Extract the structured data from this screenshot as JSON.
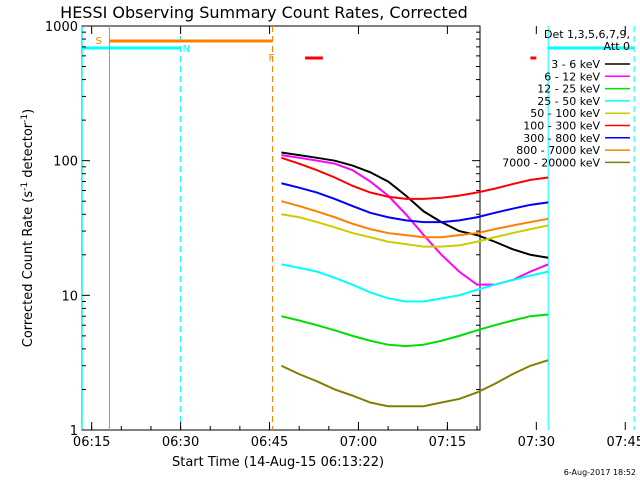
{
  "chart_data": {
    "type": "line",
    "title": "HESSI Observing Summary Count Rates, Corrected",
    "xlabel": "Start Time (14-Aug-15 06:13:22)",
    "ylabel_main": "Corrected Count Rate (s",
    "ylabel_sup1": "-1",
    "ylabel_mid": " detector",
    "ylabel_sup2": "-1",
    "ylabel_end": ")",
    "y_scale": "log",
    "ylim": [
      1,
      1000
    ],
    "xlim_min": [
      13.4,
      80.0
    ],
    "x_ticks": [
      {
        "v": 15,
        "label": "06:15"
      },
      {
        "v": 30,
        "label": "06:30"
      },
      {
        "v": 45,
        "label": "06:45"
      },
      {
        "v": 60,
        "label": "07:00"
      },
      {
        "v": 75,
        "label": "07:15"
      },
      {
        "v": 90,
        "label": "07:30"
      },
      {
        "v": 105,
        "label": "07:45"
      }
    ],
    "y_ticks": [
      {
        "v": 1,
        "label": "1"
      },
      {
        "v": 10,
        "label": "10"
      },
      {
        "v": 100,
        "label": "100"
      },
      {
        "v": 1000,
        "label": "1000"
      }
    ],
    "legend_placement": "right",
    "legend_header": [
      "Det 1,3,5,6,7,9,",
      "Att 0"
    ],
    "series": [
      {
        "name": "3 - 6 keV",
        "color": "#000000",
        "x": [
          47,
          50,
          53,
          56,
          59,
          62,
          65,
          68,
          71,
          74,
          77,
          80,
          83,
          86,
          89,
          92
        ],
        "y": [
          115,
          110,
          105,
          100,
          92,
          82,
          70,
          55,
          42,
          35,
          30,
          28,
          25,
          22,
          20,
          19
        ]
      },
      {
        "name": "6 - 12 keV",
        "color": "#ff00ff",
        "x": [
          47,
          50,
          53,
          56,
          59,
          62,
          65,
          68,
          71,
          74,
          77,
          80,
          83,
          86,
          89,
          92
        ],
        "y": [
          110,
          105,
          100,
          95,
          85,
          70,
          55,
          40,
          28,
          20,
          15,
          12,
          12,
          13,
          15,
          17
        ]
      },
      {
        "name": "12 - 25 keV",
        "color": "#00dd00",
        "x": [
          47,
          50,
          53,
          56,
          59,
          62,
          65,
          68,
          71,
          74,
          77,
          80,
          83,
          86,
          89,
          92
        ],
        "y": [
          7,
          6.5,
          6,
          5.5,
          5,
          4.6,
          4.3,
          4.2,
          4.3,
          4.6,
          5,
          5.5,
          6,
          6.5,
          7,
          7.2
        ]
      },
      {
        "name": "25 - 50 keV",
        "color": "#00ffff",
        "x": [
          47,
          50,
          53,
          56,
          59,
          62,
          65,
          68,
          71,
          74,
          77,
          80,
          83,
          86,
          89,
          92
        ],
        "y": [
          17,
          16,
          15,
          13.5,
          12,
          10.5,
          9.5,
          9,
          9,
          9.5,
          10,
          11,
          12,
          13,
          14,
          15
        ]
      },
      {
        "name": "50 - 100 keV",
        "color": "#cccc00",
        "x": [
          47,
          50,
          53,
          56,
          59,
          62,
          65,
          68,
          71,
          74,
          77,
          80,
          83,
          86,
          89,
          92
        ],
        "y": [
          40,
          38,
          35,
          32,
          29,
          27,
          25,
          24,
          23,
          23,
          23.5,
          25,
          27,
          29,
          31,
          33
        ]
      },
      {
        "name": "100 - 300 keV",
        "color": "#ff0000",
        "x": [
          47,
          50,
          53,
          56,
          59,
          62,
          65,
          68,
          71,
          74,
          77,
          80,
          83,
          86,
          89,
          92
        ],
        "y": [
          105,
          95,
          85,
          75,
          65,
          58,
          54,
          52,
          52,
          53,
          55,
          58,
          62,
          67,
          72,
          75
        ]
      },
      {
        "name": "300 - 800 keV",
        "color": "#0000ff",
        "x": [
          47,
          50,
          53,
          56,
          59,
          62,
          65,
          68,
          71,
          74,
          77,
          80,
          83,
          86,
          89,
          92
        ],
        "y": [
          68,
          63,
          58,
          52,
          46,
          41,
          38,
          36,
          35,
          35,
          36,
          38,
          41,
          44,
          47,
          49
        ]
      },
      {
        "name": "800 - 7000 keV",
        "color": "#ff8000",
        "x": [
          47,
          50,
          53,
          56,
          59,
          62,
          65,
          68,
          71,
          74,
          77,
          80,
          83,
          86,
          89,
          92
        ],
        "y": [
          50,
          46,
          42,
          38,
          34,
          31,
          29,
          28,
          27,
          27,
          28,
          29,
          31,
          33,
          35,
          37
        ]
      },
      {
        "name": "7000 - 20000 keV",
        "color": "#808000",
        "x": [
          47,
          50,
          53,
          56,
          59,
          62,
          65,
          68,
          71,
          74,
          77,
          80,
          83,
          86,
          89,
          92
        ],
        "y": [
          3.0,
          2.6,
          2.3,
          2.0,
          1.8,
          1.6,
          1.5,
          1.5,
          1.5,
          1.6,
          1.7,
          1.9,
          2.2,
          2.6,
          3.0,
          3.3
        ]
      }
    ],
    "annotations": {
      "night_intervals": [
        {
          "x0": 13.4,
          "x1": 30.0,
          "label": "N",
          "color": "#00ffff"
        },
        {
          "x0": 92.0,
          "x1": 106.5,
          "label": "",
          "color": "#00ffff"
        }
      ],
      "saa_interval": {
        "x0": 18.0,
        "x1": 45.5,
        "label": "S",
        "color": "#ff8000"
      },
      "flare_marker": {
        "x": 45.5,
        "label": "F",
        "color": "#ff8000"
      },
      "flare_bars": [
        {
          "x0": 51.0,
          "x1": 54.0
        },
        {
          "x0": 89.0,
          "x1": 90.0
        }
      ]
    },
    "footer_date": "6-Aug-2017 18:52"
  }
}
